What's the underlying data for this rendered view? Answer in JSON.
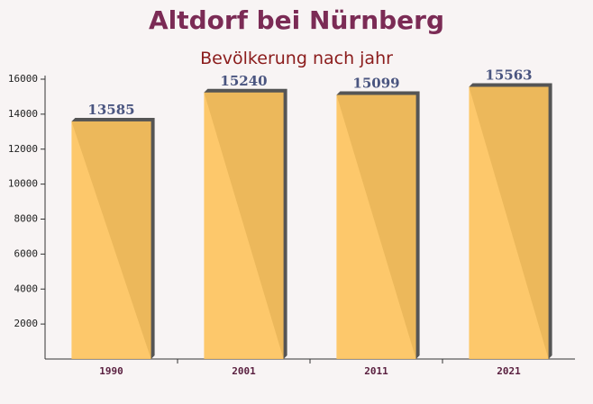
{
  "chart_data": {
    "type": "bar",
    "title": "Altdorf bei Nürnberg",
    "subtitle": "Bevölkerung nach jahr",
    "categories": [
      "1990",
      "2001",
      "2011",
      "2021"
    ],
    "values": [
      13585,
      15240,
      15099,
      15563
    ],
    "color": "#fdc35c",
    "ylim": [
      0,
      16000
    ],
    "yticks": [
      2000,
      4000,
      6000,
      8000,
      10000,
      12000,
      14000,
      16000
    ]
  }
}
